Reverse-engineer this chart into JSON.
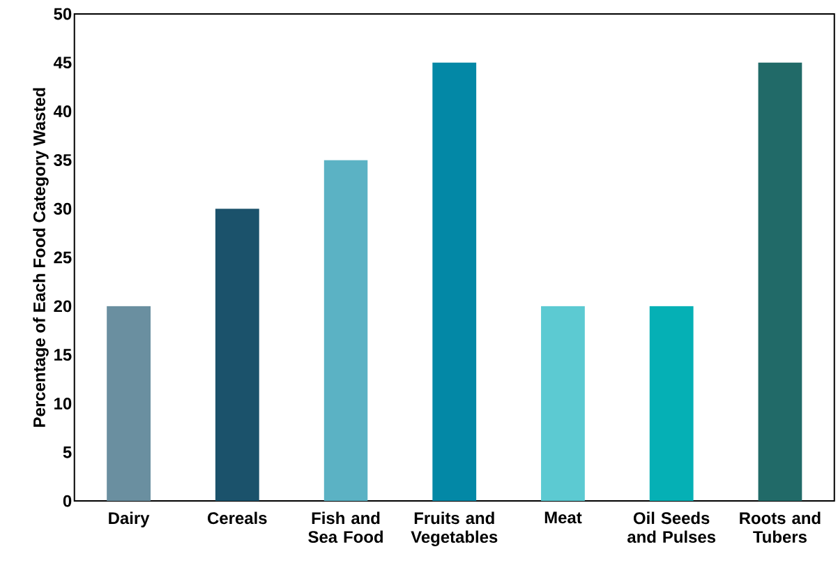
{
  "chart_data": {
    "type": "bar",
    "ylabel": "Percentage of Each Food Category Wasted",
    "categories": [
      "Dairy",
      "Cereals",
      "Fish and Sea Food",
      "Fruits and Vegetables",
      "Meat",
      "Oil Seeds and Pulses",
      "Roots and Tubers"
    ],
    "values": [
      20,
      30,
      35,
      45,
      20,
      20,
      45
    ],
    "colors": [
      "#6a8fa0",
      "#1b526b",
      "#5bb2c4",
      "#0388a6",
      "#5ccad2",
      "#05b0b5",
      "#216a68"
    ],
    "ylim": [
      0,
      50
    ],
    "yticks": [
      0,
      5,
      10,
      15,
      20,
      25,
      30,
      35,
      40,
      45,
      50
    ]
  }
}
